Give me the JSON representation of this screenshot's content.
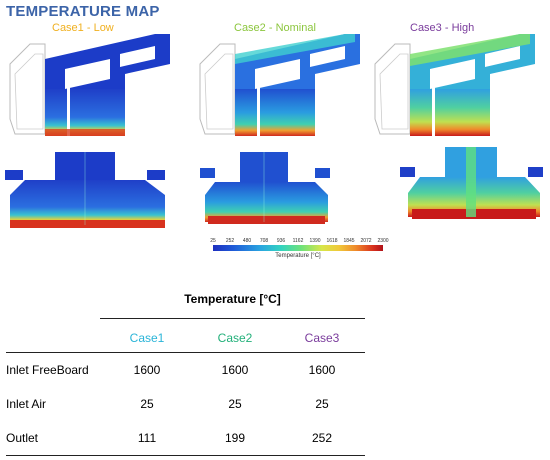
{
  "title": "TEMPERATURE MAP",
  "cases": [
    {
      "label": "Case1 - Low",
      "color": "#f0b020",
      "level": 0.25
    },
    {
      "label": "Case2 - Nominal",
      "color": "#8cc63e",
      "level": 0.5
    },
    {
      "label": "Case3 - High",
      "color": "#7a3c9c",
      "level": 0.8
    }
  ],
  "colorbar": {
    "ticks": [
      "25",
      "252",
      "480",
      "708",
      "936",
      "1162",
      "1390",
      "1618",
      "1845",
      "2072",
      "2300"
    ],
    "title": "Temperature [°C]"
  },
  "table": {
    "title": "Temperature [°C]",
    "columns": [
      {
        "label": "Case1",
        "color": "#2ab4d8"
      },
      {
        "label": "Case2",
        "color": "#22b07a"
      },
      {
        "label": "Case3",
        "color": "#7a3c9c"
      }
    ],
    "rows": [
      {
        "label": "Inlet FreeBoard",
        "values": [
          "1600",
          "1600",
          "1600"
        ]
      },
      {
        "label": "Inlet Air",
        "values": [
          "25",
          "25",
          "25"
        ]
      },
      {
        "label": "Outlet",
        "values": [
          "111",
          "199",
          "252"
        ]
      }
    ]
  }
}
